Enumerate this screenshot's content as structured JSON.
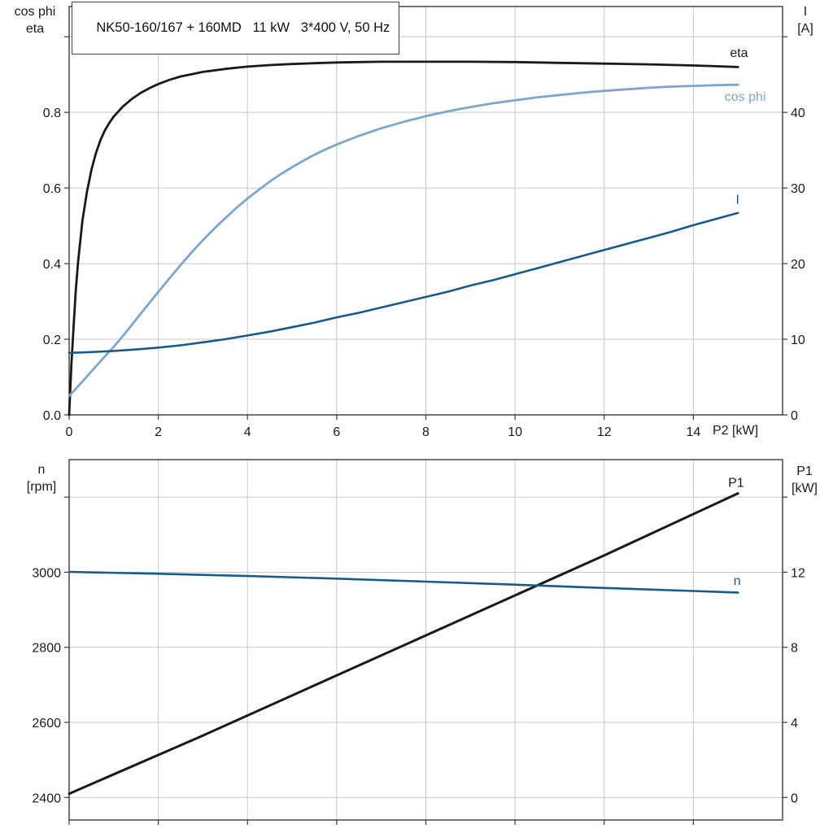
{
  "colors": {
    "black": "#1a1a1a",
    "light_blue": "#7fa5cc",
    "dark_blue": "#1a5a86",
    "grid": "#c8c8c8",
    "frame": "#3a3a3a",
    "background": "#ffffff"
  },
  "chart_data": [
    {
      "id": "top",
      "type": "line",
      "title": "NK50-160/167 + 160MD   11 kW   3*400 V, 50 Hz",
      "xlabel": "P2 [kW]",
      "legend_position": "curve-end-labels",
      "grid": true,
      "x_axis": {
        "lim": [
          0,
          16
        ],
        "ticks": [
          0,
          2,
          4,
          6,
          8,
          10,
          12,
          14
        ],
        "tick_labels": [
          "0",
          "2",
          "4",
          "6",
          "8",
          "10",
          "12",
          "14"
        ]
      },
      "left_axis": {
        "name_lines": [
          "cos phi",
          "eta"
        ],
        "lim": [
          0,
          1.08
        ],
        "ticks": [
          0,
          0.2,
          0.4,
          0.6,
          0.8,
          1.0
        ],
        "tick_labels": [
          "0.0",
          "0.2",
          "0.4",
          "0.6",
          "0.8",
          ""
        ]
      },
      "right_axis": {
        "name_lines": [
          "I",
          "[A]"
        ],
        "lim": [
          0,
          54
        ],
        "ticks": [
          0,
          10,
          20,
          30,
          40,
          50
        ],
        "tick_labels": [
          "0",
          "10",
          "20",
          "30",
          "40",
          ""
        ]
      },
      "series": [
        {
          "name": "eta",
          "axis": "left",
          "color_key": "black",
          "width": 2.8,
          "label": {
            "text": "eta",
            "x": 14.82,
            "y": 0.947
          },
          "points": [
            [
              0,
              0
            ],
            [
              0.05,
              0.13
            ],
            [
              0.1,
              0.235
            ],
            [
              0.15,
              0.33
            ],
            [
              0.2,
              0.405
            ],
            [
              0.3,
              0.515
            ],
            [
              0.4,
              0.59
            ],
            [
              0.5,
              0.648
            ],
            [
              0.6,
              0.692
            ],
            [
              0.7,
              0.726
            ],
            [
              0.8,
              0.752
            ],
            [
              0.9,
              0.772
            ],
            [
              1,
              0.789
            ],
            [
              1.2,
              0.815
            ],
            [
              1.4,
              0.835
            ],
            [
              1.6,
              0.851
            ],
            [
              1.8,
              0.864
            ],
            [
              2,
              0.875
            ],
            [
              2.25,
              0.886
            ],
            [
              2.5,
              0.895
            ],
            [
              2.75,
              0.901
            ],
            [
              3,
              0.907
            ],
            [
              3.5,
              0.915
            ],
            [
              4,
              0.921
            ],
            [
              4.5,
              0.925
            ],
            [
              5,
              0.928
            ],
            [
              5.5,
              0.93
            ],
            [
              6,
              0.932
            ],
            [
              6.5,
              0.933
            ],
            [
              7,
              0.934
            ],
            [
              8,
              0.934
            ],
            [
              9,
              0.934
            ],
            [
              10,
              0.933
            ],
            [
              11,
              0.931
            ],
            [
              12,
              0.929
            ],
            [
              13,
              0.927
            ],
            [
              14,
              0.924
            ],
            [
              14.5,
              0.922
            ],
            [
              15,
              0.92
            ]
          ]
        },
        {
          "name": "cos_phi",
          "axis": "left",
          "color_key": "light_blue",
          "width": 2.8,
          "label": {
            "text": "cos phi",
            "x": 14.7,
            "y": 0.83
          },
          "points": [
            [
              0,
              0.05
            ],
            [
              0.25,
              0.082
            ],
            [
              0.5,
              0.115
            ],
            [
              0.75,
              0.148
            ],
            [
              1,
              0.18
            ],
            [
              1.25,
              0.215
            ],
            [
              1.5,
              0.252
            ],
            [
              1.75,
              0.289
            ],
            [
              2,
              0.325
            ],
            [
              2.25,
              0.361
            ],
            [
              2.5,
              0.396
            ],
            [
              2.75,
              0.43
            ],
            [
              3,
              0.462
            ],
            [
              3.25,
              0.492
            ],
            [
              3.5,
              0.52
            ],
            [
              3.75,
              0.547
            ],
            [
              4,
              0.572
            ],
            [
              4.25,
              0.595
            ],
            [
              4.5,
              0.617
            ],
            [
              4.75,
              0.637
            ],
            [
              5,
              0.655
            ],
            [
              5.25,
              0.672
            ],
            [
              5.5,
              0.688
            ],
            [
              5.75,
              0.702
            ],
            [
              6,
              0.715
            ],
            [
              6.5,
              0.738
            ],
            [
              7,
              0.758
            ],
            [
              7.5,
              0.775
            ],
            [
              8,
              0.79
            ],
            [
              8.5,
              0.803
            ],
            [
              9,
              0.814
            ],
            [
              9.5,
              0.824
            ],
            [
              10,
              0.832
            ],
            [
              10.5,
              0.84
            ],
            [
              11,
              0.846
            ],
            [
              11.5,
              0.852
            ],
            [
              12,
              0.857
            ],
            [
              12.5,
              0.861
            ],
            [
              13,
              0.865
            ],
            [
              13.5,
              0.868
            ],
            [
              14,
              0.87
            ],
            [
              14.5,
              0.872
            ],
            [
              15,
              0.873
            ]
          ]
        },
        {
          "name": "I",
          "axis": "right",
          "color_key": "dark_blue",
          "width": 2.6,
          "label": {
            "text": "I",
            "x": 14.95,
            "y": 27.9
          },
          "points": [
            [
              0,
              8.2
            ],
            [
              0.5,
              8.3
            ],
            [
              1,
              8.45
            ],
            [
              1.5,
              8.65
            ],
            [
              2,
              8.9
            ],
            [
              2.5,
              9.2
            ],
            [
              3,
              9.6
            ],
            [
              3.5,
              10
            ],
            [
              4,
              10.5
            ],
            [
              4.5,
              11
            ],
            [
              5,
              11.6
            ],
            [
              5.5,
              12.2
            ],
            [
              6,
              12.9
            ],
            [
              6.5,
              13.5
            ],
            [
              7,
              14.2
            ],
            [
              7.5,
              14.9
            ],
            [
              8,
              15.6
            ],
            [
              8.5,
              16.3
            ],
            [
              9,
              17.1
            ],
            [
              9.5,
              17.8
            ],
            [
              10,
              18.6
            ],
            [
              10.5,
              19.4
            ],
            [
              11,
              20.2
            ],
            [
              11.5,
              21
            ],
            [
              12,
              21.8
            ],
            [
              12.5,
              22.6
            ],
            [
              13,
              23.4
            ],
            [
              13.5,
              24.2
            ],
            [
              14,
              25.1
            ],
            [
              14.5,
              25.9
            ],
            [
              15,
              26.7
            ]
          ]
        }
      ]
    },
    {
      "id": "bottom",
      "type": "line",
      "title": "",
      "xlabel": "",
      "legend_position": "curve-end-labels",
      "grid": true,
      "x_axis": {
        "lim": [
          0,
          16
        ],
        "ticks": [
          0,
          2,
          4,
          6,
          8,
          10,
          12,
          14
        ],
        "tick_labels": [
          "",
          "",
          "",
          "",
          "",
          "",
          "",
          ""
        ]
      },
      "left_axis": {
        "name_lines": [
          "n",
          "[rpm]"
        ],
        "lim": [
          2340,
          3300
        ],
        "ticks": [
          2400,
          2600,
          2800,
          3000,
          3200
        ],
        "tick_labels": [
          "2400",
          "2600",
          "2800",
          "3000",
          ""
        ]
      },
      "right_axis": {
        "name_lines": [
          "P1",
          "[kW]"
        ],
        "lim": [
          -1.2,
          18
        ],
        "ticks": [
          0,
          4,
          8,
          12,
          16
        ],
        "tick_labels": [
          "0",
          "4",
          "8",
          "12",
          ""
        ]
      },
      "series": [
        {
          "name": "P1",
          "axis": "right",
          "color_key": "black",
          "width": 3,
          "label": {
            "text": "P1",
            "x": 14.78,
            "y": 16.55
          },
          "points": [
            [
              0,
              0.2
            ],
            [
              3,
              3.3
            ],
            [
              6,
              6.5
            ],
            [
              9,
              9.7
            ],
            [
              12,
              12.9
            ],
            [
              15,
              16.2
            ]
          ]
        },
        {
          "name": "n",
          "axis": "left",
          "color_key": "dark_blue",
          "width": 2.6,
          "label": {
            "text": "n",
            "x": 14.9,
            "y": 2966
          },
          "points": [
            [
              0,
              3001
            ],
            [
              2,
              2996
            ],
            [
              4,
              2990
            ],
            [
              6,
              2983
            ],
            [
              8,
              2975
            ],
            [
              10,
              2967
            ],
            [
              12,
              2958
            ],
            [
              14,
              2950
            ],
            [
              15,
              2946
            ]
          ]
        }
      ]
    }
  ]
}
